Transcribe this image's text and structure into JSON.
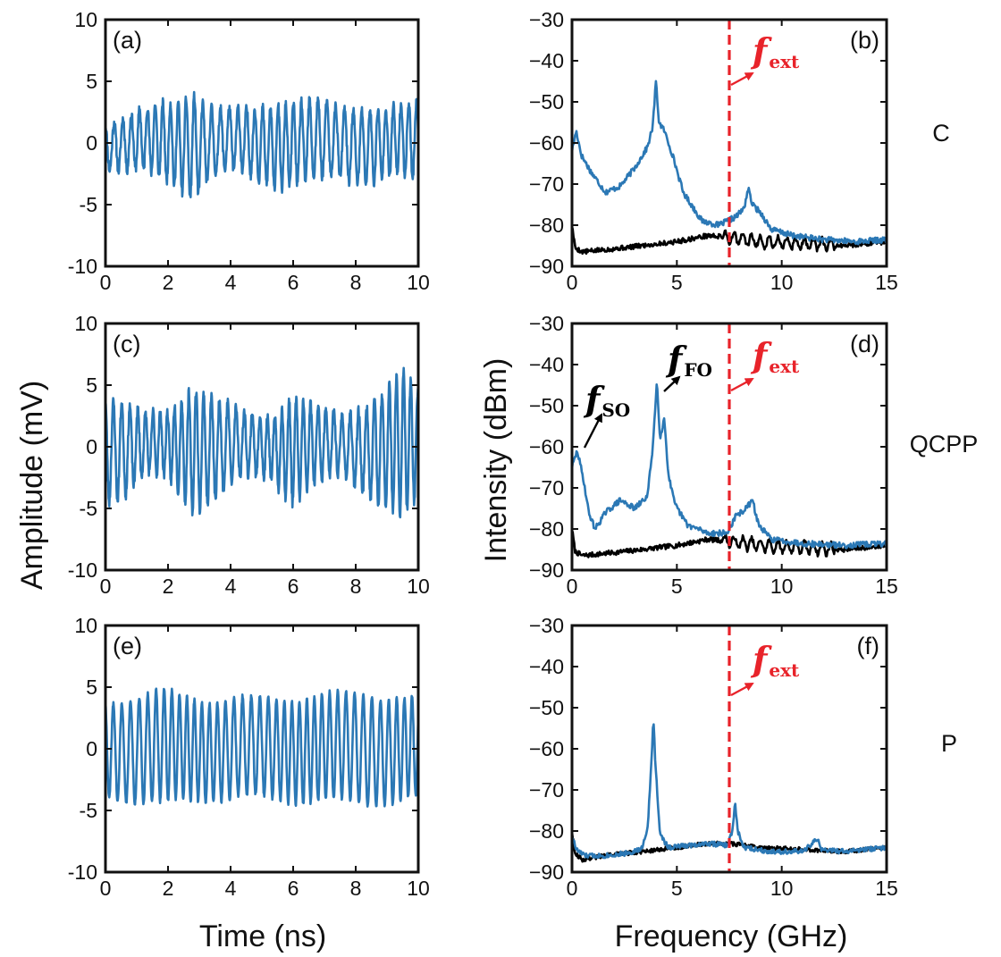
{
  "figure": {
    "left_axis_title": "Amplitude (mV)",
    "left_xlabel": "Time (ns)",
    "right_axis_title": "Intensity (dBm)",
    "right_xlabel": "Frequency (GHz)",
    "row_labels": [
      "C",
      "QCPP",
      "P"
    ],
    "colors": {
      "signal": "#2b78b5",
      "noise": "#000000",
      "marker": "#e8232a"
    }
  },
  "chart_data": [
    {
      "id": "a",
      "panel_label": "(a)",
      "type": "line",
      "xlim": [
        0,
        10
      ],
      "ylim": [
        -10,
        10
      ],
      "xticks": [
        "0",
        "2",
        "4",
        "6",
        "8",
        "10"
      ],
      "yticks": [
        "10",
        "5",
        "0",
        "-5",
        "-10"
      ],
      "xlabel": "",
      "ylabel": "",
      "series": [
        {
          "color": "#2b78b5",
          "kind": "time",
          "seed": 11,
          "freq": 3.8,
          "envelope": [
            [
              0,
              1.8
            ],
            [
              0.8,
              2.2
            ],
            [
              1.6,
              2.8
            ],
            [
              2.4,
              3.6
            ],
            [
              2.8,
              4.2
            ],
            [
              3.3,
              3.0
            ],
            [
              3.8,
              2.4
            ],
            [
              4.6,
              2.6
            ],
            [
              5.5,
              3.4
            ],
            [
              6.5,
              3.2
            ],
            [
              7.5,
              2.8
            ],
            [
              8.5,
              3.0
            ],
            [
              9.3,
              2.7
            ],
            [
              10,
              3.2
            ]
          ],
          "noise": 0.9
        }
      ]
    },
    {
      "id": "b",
      "panel_label": "(b)",
      "type": "line",
      "xlim": [
        0,
        15
      ],
      "ylim": [
        -90,
        -30
      ],
      "xticks": [
        "0",
        "5",
        "10",
        "15"
      ],
      "yticks": [
        "−30",
        "−40",
        "−50",
        "−60",
        "−70",
        "−80",
        "−90"
      ],
      "marker_x": 7.5,
      "annotations": [
        {
          "base": "f",
          "sub": "ext",
          "color": "#e8232a"
        }
      ],
      "series": [
        {
          "name": "",
          "color": "#000000",
          "kind": "spectrum",
          "seed": 5,
          "points": [
            [
              0,
              -80
            ],
            [
              0.15,
              -85.5
            ],
            [
              0.5,
              -86.5
            ],
            [
              1.5,
              -86
            ],
            [
              3,
              -85.2
            ],
            [
              5,
              -84
            ],
            [
              6.5,
              -82.5
            ],
            [
              7.5,
              -83
            ],
            [
              9,
              -84
            ],
            [
              11,
              -84.5
            ],
            [
              13,
              -85
            ],
            [
              15,
              -84
            ]
          ],
          "jitter": 0.6,
          "ripple": {
            "from": 7.2,
            "to": 12.5,
            "amp": 1.4,
            "period": 0.42
          }
        },
        {
          "name": "",
          "color": "#2b78b5",
          "kind": "spectrum",
          "seed": 17,
          "points": [
            [
              0,
              -62
            ],
            [
              0.2,
              -57
            ],
            [
              0.45,
              -63
            ],
            [
              0.9,
              -67
            ],
            [
              1.6,
              -72
            ],
            [
              2.3,
              -70.5
            ],
            [
              3,
              -66
            ],
            [
              3.6,
              -61
            ],
            [
              3.85,
              -56
            ],
            [
              4,
              -45
            ],
            [
              4.15,
              -55
            ],
            [
              4.4,
              -57
            ],
            [
              4.8,
              -63
            ],
            [
              5.3,
              -72
            ],
            [
              6.2,
              -79
            ],
            [
              7,
              -80
            ],
            [
              7.8,
              -78
            ],
            [
              8.2,
              -76
            ],
            [
              8.4,
              -71
            ],
            [
              8.6,
              -75
            ],
            [
              9,
              -77
            ],
            [
              9.5,
              -81
            ],
            [
              10.5,
              -82.5
            ],
            [
              12,
              -83.5
            ],
            [
              13.5,
              -84
            ],
            [
              15,
              -83.5
            ]
          ],
          "jitter": 0.7
        }
      ]
    },
    {
      "id": "c",
      "panel_label": "(c)",
      "type": "line",
      "xlim": [
        0,
        10
      ],
      "ylim": [
        -10,
        10
      ],
      "xticks": [
        "0",
        "2",
        "4",
        "6",
        "8",
        "10"
      ],
      "yticks": [
        "10",
        "5",
        "0",
        "-5",
        "-10"
      ],
      "series": [
        {
          "color": "#2b78b5",
          "kind": "time",
          "seed": 23,
          "freq": 4.1,
          "envelope": [
            [
              0,
              4.2
            ],
            [
              0.6,
              3.8
            ],
            [
              1.3,
              2.4
            ],
            [
              2.0,
              2.6
            ],
            [
              2.8,
              5.0
            ],
            [
              3.6,
              4.0
            ],
            [
              4.4,
              2.5
            ],
            [
              5.3,
              2.6
            ],
            [
              6.0,
              4.3
            ],
            [
              6.8,
              3.0
            ],
            [
              7.6,
              2.3
            ],
            [
              8.4,
              3.6
            ],
            [
              9.0,
              4.8
            ],
            [
              9.5,
              6.0
            ],
            [
              10,
              4.2
            ]
          ],
          "noise": 0.9
        }
      ]
    },
    {
      "id": "d",
      "panel_label": "(d)",
      "type": "line",
      "xlim": [
        0,
        15
      ],
      "ylim": [
        -90,
        -30
      ],
      "xticks": [
        "0",
        "5",
        "10",
        "15"
      ],
      "yticks": [
        "−30",
        "−40",
        "−50",
        "−60",
        "−70",
        "−80",
        "−90"
      ],
      "marker_x": 7.5,
      "annotations": [
        {
          "base": "f",
          "sub": "SO",
          "color": "#000000"
        },
        {
          "base": "f",
          "sub": "FO",
          "color": "#000000"
        },
        {
          "base": "f",
          "sub": "ext",
          "color": "#e8232a"
        }
      ],
      "series": [
        {
          "name": "",
          "color": "#000000",
          "kind": "spectrum",
          "seed": 7,
          "points": [
            [
              0,
              -80
            ],
            [
              0.15,
              -85.5
            ],
            [
              0.5,
              -86.5
            ],
            [
              1.5,
              -86
            ],
            [
              3,
              -85.2
            ],
            [
              5,
              -84
            ],
            [
              6.5,
              -82.5
            ],
            [
              7.5,
              -83
            ],
            [
              9,
              -84
            ],
            [
              11,
              -84.5
            ],
            [
              13,
              -85
            ],
            [
              15,
              -84
            ]
          ],
          "jitter": 0.6,
          "ripple": {
            "from": 7.2,
            "to": 12.5,
            "amp": 1.4,
            "period": 0.42
          }
        },
        {
          "name": "",
          "color": "#2b78b5",
          "kind": "spectrum",
          "seed": 29,
          "points": [
            [
              0,
              -65
            ],
            [
              0.25,
              -61
            ],
            [
              0.55,
              -68
            ],
            [
              0.8,
              -76
            ],
            [
              1.1,
              -80
            ],
            [
              1.6,
              -76
            ],
            [
              2.3,
              -73
            ],
            [
              3,
              -75
            ],
            [
              3.6,
              -72
            ],
            [
              3.85,
              -60
            ],
            [
              4.05,
              -44
            ],
            [
              4.2,
              -58
            ],
            [
              4.4,
              -53
            ],
            [
              4.6,
              -67
            ],
            [
              4.9,
              -74
            ],
            [
              5.5,
              -79
            ],
            [
              6.5,
              -81
            ],
            [
              7.4,
              -81
            ],
            [
              7.8,
              -77
            ],
            [
              8.3,
              -75
            ],
            [
              8.6,
              -73
            ],
            [
              8.9,
              -79
            ],
            [
              9.5,
              -82.5
            ],
            [
              11,
              -83.5
            ],
            [
              13,
              -84
            ],
            [
              15,
              -83.5
            ]
          ],
          "jitter": 0.7
        }
      ]
    },
    {
      "id": "e",
      "panel_label": "(e)",
      "type": "line",
      "xlim": [
        0,
        10
      ],
      "ylim": [
        -10,
        10
      ],
      "xticks": [
        "0",
        "2",
        "4",
        "6",
        "8",
        "10"
      ],
      "yticks": [
        "10",
        "5",
        "0",
        "-5",
        "-10"
      ],
      "series": [
        {
          "color": "#2b78b5",
          "kind": "time",
          "seed": 41,
          "freq": 3.9,
          "envelope": [
            [
              0,
              3.8
            ],
            [
              1.8,
              4.6
            ],
            [
              3,
              4.0
            ],
            [
              5,
              4.0
            ],
            [
              7,
              4.3
            ],
            [
              8.5,
              4.4
            ],
            [
              10,
              4.0
            ]
          ],
          "noise": 0.35
        }
      ]
    },
    {
      "id": "f",
      "panel_label": "(f)",
      "type": "line",
      "xlim": [
        0,
        15
      ],
      "ylim": [
        -90,
        -30
      ],
      "xticks": [
        "0",
        "5",
        "10",
        "15"
      ],
      "yticks": [
        "−30",
        "−40",
        "−50",
        "−60",
        "−70",
        "−80",
        "−90"
      ],
      "marker_x": 7.5,
      "annotations": [
        {
          "base": "f",
          "sub": "ext",
          "color": "#e8232a"
        }
      ],
      "series": [
        {
          "name": "",
          "color": "#000000",
          "kind": "spectrum",
          "seed": 9,
          "points": [
            [
              0,
              -80
            ],
            [
              0.15,
              -85.5
            ],
            [
              0.5,
              -87
            ],
            [
              1.5,
              -86
            ],
            [
              3,
              -85.2
            ],
            [
              5,
              -84
            ],
            [
              6.5,
              -83
            ],
            [
              7.5,
              -83
            ],
            [
              9,
              -84
            ],
            [
              11,
              -84.5
            ],
            [
              13,
              -85
            ],
            [
              15,
              -84
            ]
          ],
          "jitter": 0.5
        },
        {
          "name": "",
          "color": "#2b78b5",
          "kind": "spectrum",
          "seed": 33,
          "points": [
            [
              0,
              -81
            ],
            [
              0.2,
              -84.5
            ],
            [
              0.6,
              -86
            ],
            [
              1.5,
              -86
            ],
            [
              2.5,
              -85.5
            ],
            [
              3.3,
              -84.5
            ],
            [
              3.6,
              -80
            ],
            [
              3.78,
              -64
            ],
            [
              3.88,
              -52
            ],
            [
              3.98,
              -64
            ],
            [
              4.2,
              -81
            ],
            [
              4.6,
              -84
            ],
            [
              5.5,
              -83.5
            ],
            [
              6.5,
              -83
            ],
            [
              7.4,
              -83.5
            ],
            [
              7.65,
              -80
            ],
            [
              7.78,
              -73
            ],
            [
              7.9,
              -80
            ],
            [
              8.2,
              -84
            ],
            [
              9.5,
              -85
            ],
            [
              11,
              -85
            ],
            [
              11.7,
              -82
            ],
            [
              11.9,
              -84.5
            ],
            [
              13,
              -85
            ],
            [
              15,
              -84
            ]
          ],
          "jitter": 0.6
        }
      ]
    }
  ]
}
